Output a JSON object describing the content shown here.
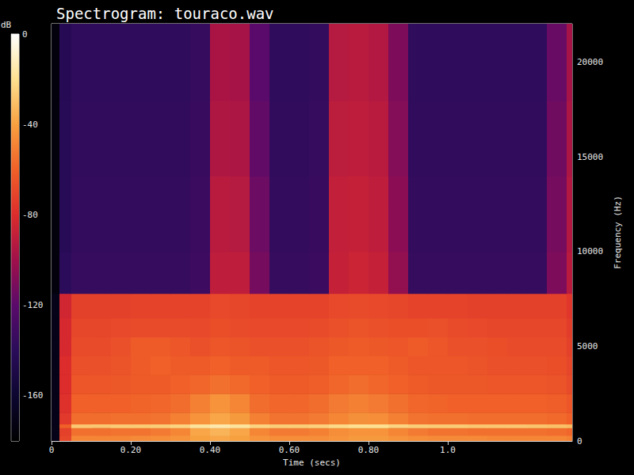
{
  "chart_data": {
    "type": "heatmap",
    "title": "Spectrogram: touraco.wav",
    "x_label": "Time (secs)",
    "y_label": "Frequency (Hz)",
    "xlim": [
      0,
      1.314
    ],
    "xticks": [
      0,
      {
        "value": 0.2,
        "label": "0.20"
      },
      {
        "value": 0.4,
        "label": "0.40"
      },
      {
        "value": 0.6,
        "label": "0.60"
      },
      {
        "value": 0.8,
        "label": "0.80"
      },
      {
        "value": 1,
        "label": "1.0"
      }
    ],
    "ylim": [
      0,
      22050
    ],
    "yticks": [
      0,
      5000,
      10000,
      15000,
      20000
    ],
    "grid": false,
    "time_bins": [
      0,
      0.02,
      0.05,
      0.1,
      0.15,
      0.2,
      0.25,
      0.3,
      0.35,
      0.4,
      0.45,
      0.5,
      0.55,
      0.6,
      0.65,
      0.7,
      0.75,
      0.8,
      0.85,
      0.9,
      0.95,
      1.0,
      1.05,
      1.1,
      1.15,
      1.2,
      1.25,
      1.3,
      1.314
    ],
    "frequency_bins": [
      0,
      300,
      700,
      900,
      1500,
      2500,
      3500,
      4500,
      5500,
      6500,
      7800,
      10000,
      14000,
      18000,
      22050
    ],
    "cells": [
      [
        -170,
        -70,
        -48,
        -48,
        -48,
        -47,
        -46,
        -44,
        -40,
        -38,
        -40,
        -44,
        -46,
        -46,
        -46,
        -44,
        -42,
        -42,
        -44,
        -46,
        -47,
        -47,
        -47,
        -48,
        -48,
        -48,
        -48,
        -50
      ],
      [
        -170,
        -72,
        -55,
        -55,
        -54,
        -54,
        -52,
        -48,
        -38,
        -34,
        -38,
        -48,
        -52,
        -52,
        -50,
        -46,
        -44,
        -44,
        -48,
        -52,
        -54,
        -54,
        -55,
        -55,
        -55,
        -55,
        -56,
        -58
      ],
      [
        -170,
        -60,
        -28,
        -28,
        -27,
        -27,
        -26,
        -24,
        -18,
        -15,
        -18,
        -24,
        -26,
        -26,
        -25,
        -22,
        -20,
        -20,
        -24,
        -26,
        -27,
        -27,
        -28,
        -28,
        -28,
        -29,
        -30,
        -32
      ],
      [
        -170,
        -75,
        -56,
        -56,
        -55,
        -55,
        -54,
        -50,
        -44,
        -38,
        -42,
        -50,
        -54,
        -54,
        -52,
        -48,
        -45,
        -46,
        -50,
        -54,
        -55,
        -55,
        -56,
        -56,
        -56,
        -56,
        -57,
        -60
      ],
      [
        -170,
        -78,
        -60,
        -60,
        -60,
        -59,
        -58,
        -56,
        -50,
        -44,
        -48,
        -56,
        -58,
        -58,
        -56,
        -52,
        -50,
        -52,
        -55,
        -58,
        -59,
        -60,
        -60,
        -60,
        -60,
        -60,
        -61,
        -64
      ],
      [
        -170,
        -80,
        -64,
        -64,
        -63,
        -62,
        -62,
        -60,
        -58,
        -55,
        -57,
        -60,
        -62,
        -62,
        -61,
        -58,
        -56,
        -58,
        -60,
        -62,
        -63,
        -63,
        -63,
        -64,
        -64,
        -64,
        -65,
        -68
      ],
      [
        -170,
        -80,
        -66,
        -66,
        -65,
        -62,
        -60,
        -62,
        -62,
        -60,
        -62,
        -62,
        -64,
        -64,
        -63,
        -60,
        -60,
        -60,
        -62,
        -64,
        -64,
        -64,
        -65,
        -66,
        -66,
        -66,
        -67,
        -70
      ],
      [
        -170,
        -82,
        -68,
        -68,
        -66,
        -62,
        -62,
        -64,
        -66,
        -64,
        -65,
        -66,
        -66,
        -66,
        -65,
        -63,
        -62,
        -63,
        -64,
        -62,
        -64,
        -66,
        -66,
        -67,
        -68,
        -68,
        -68,
        -72
      ],
      [
        -170,
        -82,
        -70,
        -70,
        -69,
        -68,
        -68,
        -68,
        -69,
        -67,
        -68,
        -69,
        -69,
        -69,
        -68,
        -66,
        -65,
        -66,
        -67,
        -67,
        -66,
        -68,
        -69,
        -70,
        -70,
        -70,
        -70,
        -74
      ],
      [
        -170,
        -84,
        -72,
        -72,
        -72,
        -71,
        -71,
        -71,
        -71,
        -69,
        -70,
        -71,
        -71,
        -71,
        -71,
        -69,
        -68,
        -69,
        -70,
        -71,
        -71,
        -71,
        -72,
        -72,
        -72,
        -72,
        -72,
        -76
      ],
      [
        -175,
        -140,
        -135,
        -135,
        -135,
        -135,
        -135,
        -135,
        -132,
        -90,
        -90,
        -112,
        -135,
        -135,
        -133,
        -88,
        -86,
        -88,
        -104,
        -135,
        -135,
        -135,
        -135,
        -135,
        -135,
        -135,
        -110,
        -92
      ],
      [
        -175,
        -142,
        -136,
        -136,
        -136,
        -136,
        -136,
        -136,
        -133,
        -92,
        -93,
        -115,
        -136,
        -136,
        -134,
        -89,
        -88,
        -90,
        -106,
        -136,
        -136,
        -136,
        -136,
        -136,
        -136,
        -136,
        -112,
        -94
      ],
      [
        -175,
        -142,
        -137,
        -137,
        -137,
        -137,
        -137,
        -137,
        -134,
        -95,
        -96,
        -118,
        -137,
        -137,
        -135,
        -91,
        -90,
        -92,
        -108,
        -137,
        -137,
        -137,
        -137,
        -137,
        -137,
        -137,
        -114,
        -96
      ],
      [
        -175,
        -143,
        -138,
        -138,
        -138,
        -138,
        -138,
        -138,
        -135,
        -97,
        -98,
        -120,
        -138,
        -138,
        -136,
        -93,
        -92,
        -94,
        -110,
        -138,
        -138,
        -138,
        -138,
        -138,
        -138,
        -138,
        -116,
        -98
      ]
    ],
    "colorbar": {
      "label": "dB",
      "range": [
        -180,
        0
      ],
      "ticks": [
        0,
        -40,
        -80,
        -120,
        -160
      ]
    }
  }
}
